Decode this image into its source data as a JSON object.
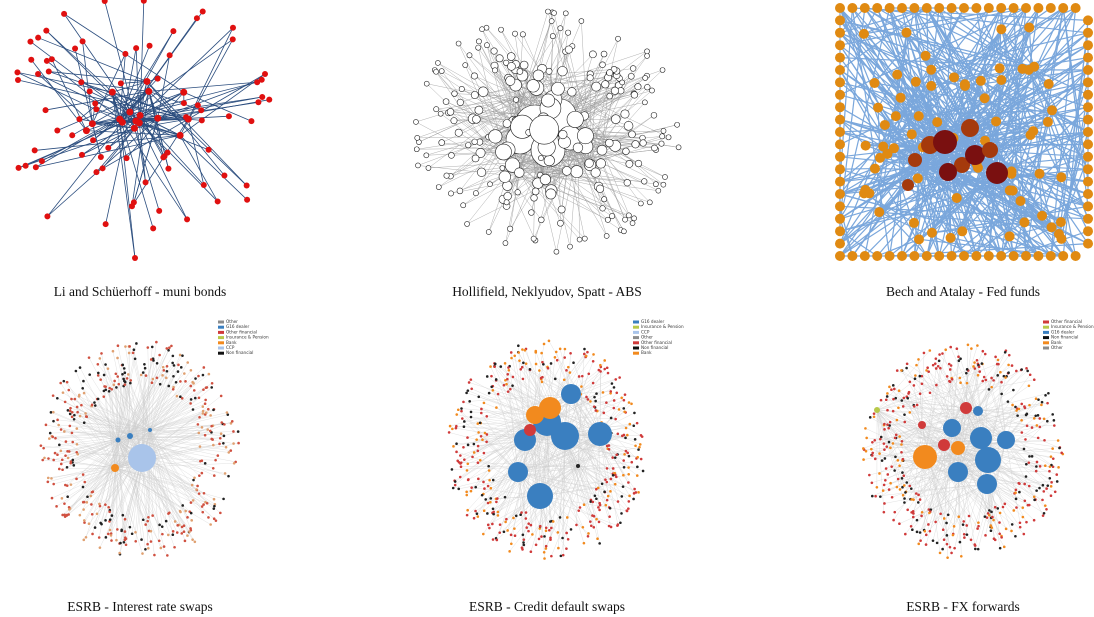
{
  "captions": [
    "Li and Schüerhoff - muni bonds",
    "Hollifield, Neklyudov, Spatt - ABS",
    "Bech and Atalay - Fed funds",
    "ESRB - Interest rate swaps",
    "ESRB - Credit default swaps",
    "ESRB - FX forwards"
  ],
  "legends": [
    {
      "items": [
        {
          "label": "Other",
          "color": "#8c8c8c"
        },
        {
          "label": "G16 dealer",
          "color": "#3a7fc0"
        },
        {
          "label": "Other financial",
          "color": "#d03a3a"
        },
        {
          "label": "Insurance & Pension",
          "color": "#b8c94a"
        },
        {
          "label": "Bank",
          "color": "#f28a1e"
        },
        {
          "label": "CCP",
          "color": "#a9c4ea"
        },
        {
          "label": "Non financial",
          "color": "#111111"
        }
      ]
    },
    {
      "items": [
        {
          "label": "G16 dealer",
          "color": "#3a7fc0"
        },
        {
          "label": "Insurance & Pension",
          "color": "#b8c94a"
        },
        {
          "label": "CCP",
          "color": "#a9c4ea"
        },
        {
          "label": "Other",
          "color": "#8c8c8c"
        },
        {
          "label": "Other financial",
          "color": "#d03a3a"
        },
        {
          "label": "Non financial",
          "color": "#111111"
        },
        {
          "label": "Bank",
          "color": "#f28a1e"
        }
      ]
    },
    {
      "items": [
        {
          "label": "Other financial",
          "color": "#d03a3a"
        },
        {
          "label": "Insurance & Pension",
          "color": "#b8c94a"
        },
        {
          "label": "G16 dealer",
          "color": "#3a7fc0"
        },
        {
          "label": "Non financial",
          "color": "#111111"
        },
        {
          "label": "Bank",
          "color": "#f28a1e"
        },
        {
          "label": "Other",
          "color": "#8c8c8c"
        }
      ]
    }
  ]
}
